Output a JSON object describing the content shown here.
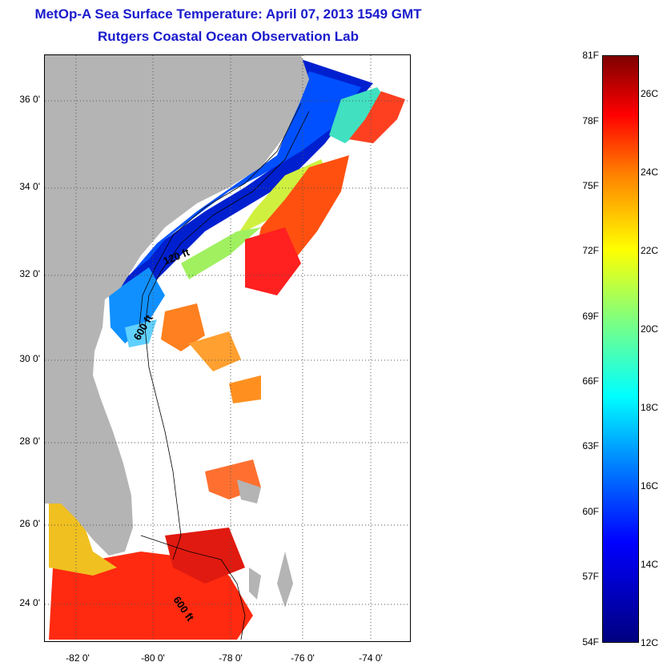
{
  "title": {
    "line1": "MetOp-A Sea Surface Temperature:  April 07, 2013 1549 GMT",
    "line2": "Rutgers Coastal Ocean Observation Lab"
  },
  "map": {
    "lat_labels": [
      "36 0'",
      "34 0'",
      "32 0'",
      "30 0'",
      "28 0'",
      "26 0'",
      "24 0'"
    ],
    "lon_labels": [
      "-82 0'",
      "-80 0'",
      "-78 0'",
      "-76 0'",
      "-74 0'"
    ],
    "isobath_labels": [
      "120 ft",
      "600 ft",
      "600 ft"
    ],
    "land_color": "#b4b4b4",
    "no_data_color": "#ffffff"
  },
  "colorbar": {
    "fahrenheit": [
      "81F",
      "78F",
      "75F",
      "72F",
      "69F",
      "66F",
      "63F",
      "60F",
      "57F",
      "54F"
    ],
    "celsius": [
      "26C",
      "24C",
      "22C",
      "20C",
      "18C",
      "16C",
      "14C",
      "12C"
    ],
    "colormap": "jet",
    "range_f": [
      54,
      81
    ],
    "range_c": [
      12,
      27.2
    ]
  }
}
